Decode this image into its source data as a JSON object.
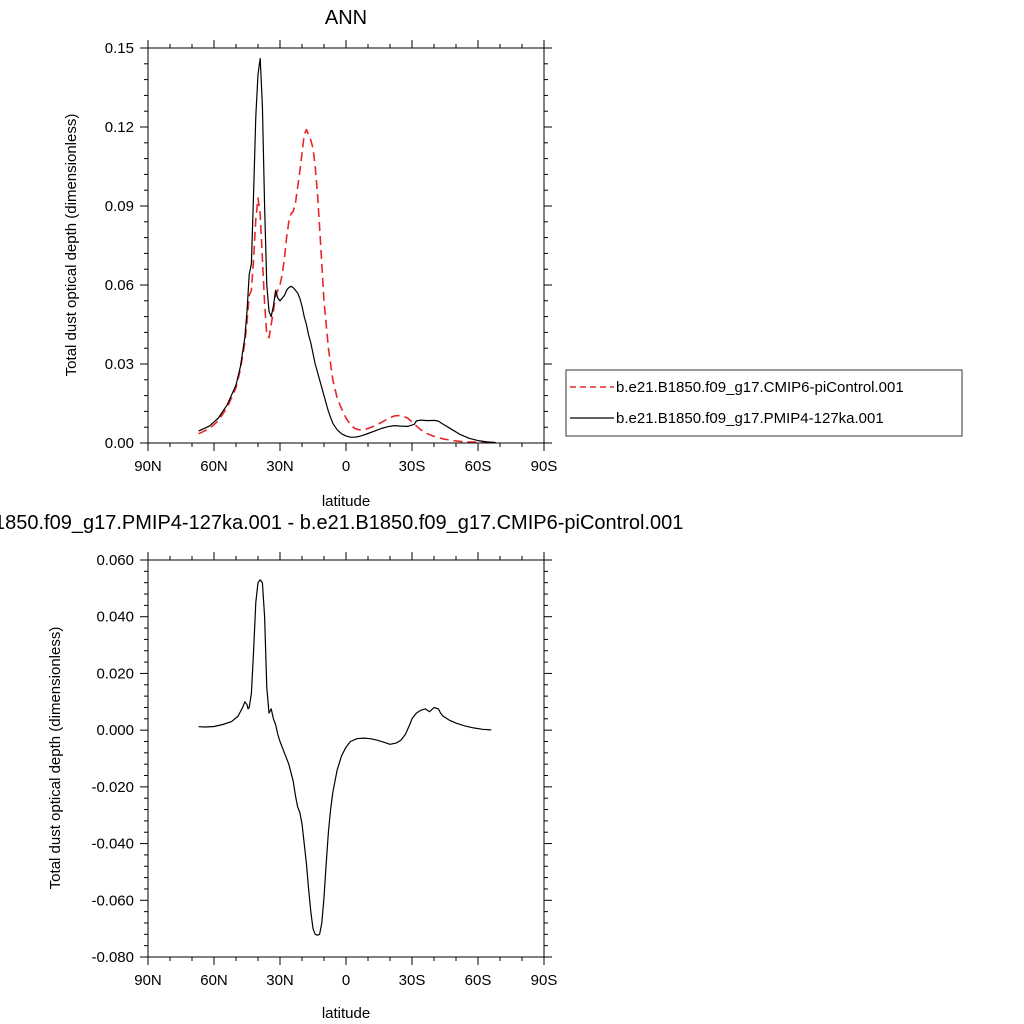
{
  "chart_data": [
    {
      "type": "line",
      "title": "ANN",
      "xlabel": "latitude",
      "ylabel": "Total dust optical depth (dimensionless)",
      "xlim": [
        90,
        -90
      ],
      "ylim": [
        0,
        0.15
      ],
      "x_ticks": [
        {
          "value": 90,
          "label": "90N"
        },
        {
          "value": 60,
          "label": "60N"
        },
        {
          "value": 30,
          "label": "30N"
        },
        {
          "value": 0,
          "label": "0"
        },
        {
          "value": -30,
          "label": "30S"
        },
        {
          "value": -60,
          "label": "60S"
        },
        {
          "value": -90,
          "label": "90S"
        }
      ],
      "y_ticks": [
        {
          "value": 0,
          "label": "0.00"
        },
        {
          "value": 0.03,
          "label": "0.03"
        },
        {
          "value": 0.06,
          "label": "0.06"
        },
        {
          "value": 0.09,
          "label": "0.09"
        },
        {
          "value": 0.12,
          "label": "0.12"
        },
        {
          "value": 0.15,
          "label": "0.15"
        }
      ],
      "grid": false,
      "legend_position": "right",
      "series": [
        {
          "name": "b.e21.B1850.f09_g17.CMIP6-piControl.001",
          "color": "#e8262a",
          "style": "dashed",
          "x": [
            67,
            62,
            58,
            54,
            50,
            48,
            46,
            45,
            44,
            43,
            42,
            41,
            40,
            39,
            38,
            37,
            36,
            35,
            34,
            33,
            32,
            31,
            30,
            29,
            28,
            27,
            26,
            25,
            24,
            23,
            22,
            21,
            20,
            19,
            18,
            17,
            16,
            15,
            14,
            13,
            12,
            11,
            10,
            8,
            6,
            4,
            2,
            0,
            -2,
            -4,
            -6,
            -8,
            -10,
            -13,
            -16,
            -19,
            -22,
            -25,
            -28,
            -31,
            -34,
            -37,
            -40,
            -44,
            -48,
            -52,
            -56,
            -60,
            -64,
            -68
          ],
          "y": [
            0.0035,
            0.0055,
            0.0085,
            0.0135,
            0.021,
            0.028,
            0.038,
            0.046,
            0.056,
            0.058,
            0.07,
            0.085,
            0.093,
            0.087,
            0.07,
            0.053,
            0.041,
            0.04,
            0.045,
            0.05,
            0.056,
            0.058,
            0.06,
            0.064,
            0.07,
            0.078,
            0.084,
            0.087,
            0.088,
            0.091,
            0.097,
            0.103,
            0.11,
            0.117,
            0.119,
            0.117,
            0.115,
            0.112,
            0.105,
            0.095,
            0.082,
            0.068,
            0.054,
            0.036,
            0.024,
            0.017,
            0.013,
            0.0095,
            0.007,
            0.0055,
            0.005,
            0.005,
            0.0055,
            0.0065,
            0.0078,
            0.0092,
            0.0103,
            0.0105,
            0.0095,
            0.0072,
            0.005,
            0.0035,
            0.0025,
            0.0016,
            0.001,
            0.0006,
            0.0004,
            0.0003,
            0.0002,
            0.0001
          ]
        },
        {
          "name": "b.e21.B1850.f09_g17.PMIP4-127ka.001",
          "color": "#000000",
          "style": "solid",
          "x": [
            67,
            62,
            58,
            54,
            50,
            48,
            46,
            45,
            44,
            43,
            42,
            41,
            40,
            39,
            38,
            37,
            36,
            35,
            34,
            33,
            32,
            31,
            30,
            29,
            28,
            27,
            26,
            25,
            24,
            23,
            22,
            21,
            20,
            19,
            18,
            17,
            16,
            15,
            14,
            13,
            12,
            11,
            10,
            8,
            6,
            4,
            2,
            0,
            -2,
            -4,
            -6,
            -8,
            -10,
            -13,
            -16,
            -19,
            -22,
            -25,
            -28,
            -31,
            -32,
            -34,
            -37,
            -40,
            -42,
            -44,
            -48,
            -52,
            -56,
            -60,
            -64,
            -68
          ],
          "y": [
            0.0045,
            0.0065,
            0.0095,
            0.0145,
            0.022,
            0.029,
            0.04,
            0.05,
            0.064,
            0.068,
            0.095,
            0.124,
            0.14,
            0.146,
            0.128,
            0.09,
            0.06,
            0.05,
            0.048,
            0.052,
            0.058,
            0.055,
            0.054,
            0.055,
            0.056,
            0.058,
            0.059,
            0.0595,
            0.059,
            0.058,
            0.057,
            0.055,
            0.052,
            0.048,
            0.045,
            0.041,
            0.038,
            0.034,
            0.03,
            0.027,
            0.024,
            0.021,
            0.018,
            0.012,
            0.0075,
            0.005,
            0.0035,
            0.0027,
            0.0022,
            0.0022,
            0.0025,
            0.003,
            0.0036,
            0.0045,
            0.0055,
            0.0062,
            0.0066,
            0.0064,
            0.0063,
            0.0071,
            0.0084,
            0.0087,
            0.0085,
            0.0086,
            0.0083,
            0.0072,
            0.0052,
            0.0032,
            0.0018,
            0.0009,
            0.0004,
            0.0002
          ]
        }
      ]
    },
    {
      "type": "line",
      "title": "1850.f09_g17.PMIP4-127ka.001 - b.e21.B1850.f09_g17.CMIP6-piControl.001",
      "xlabel": "latitude",
      "ylabel": "Total dust optical depth (dimensionless)",
      "xlim": [
        90,
        -90
      ],
      "ylim": [
        -0.08,
        0.06
      ],
      "x_ticks": [
        {
          "value": 90,
          "label": "90N"
        },
        {
          "value": 60,
          "label": "60N"
        },
        {
          "value": 30,
          "label": "30N"
        },
        {
          "value": 0,
          "label": "0"
        },
        {
          "value": -30,
          "label": "30S"
        },
        {
          "value": -60,
          "label": "60S"
        },
        {
          "value": -90,
          "label": "90S"
        }
      ],
      "y_ticks": [
        {
          "value": -0.08,
          "label": "-0.080"
        },
        {
          "value": -0.06,
          "label": "-0.060"
        },
        {
          "value": -0.04,
          "label": "-0.040"
        },
        {
          "value": -0.02,
          "label": "-0.020"
        },
        {
          "value": 0,
          "label": "0.000"
        },
        {
          "value": 0.02,
          "label": "0.020"
        },
        {
          "value": 0.04,
          "label": "0.040"
        },
        {
          "value": 0.06,
          "label": "0.060"
        }
      ],
      "grid": false,
      "series": [
        {
          "color": "#000000",
          "style": "solid",
          "x": [
            67,
            64,
            60,
            56,
            52,
            49,
            47,
            46,
            45,
            44.5,
            44,
            43,
            42,
            41,
            40,
            39,
            38,
            37,
            36,
            35,
            34,
            33,
            32,
            31,
            30,
            28,
            26,
            24,
            23,
            22,
            21,
            20,
            19,
            18,
            17,
            16,
            15,
            14,
            13,
            12,
            11,
            10,
            9,
            8,
            7,
            6,
            4,
            2,
            0,
            -2,
            -5,
            -8,
            -11,
            -14,
            -17,
            -20,
            -23,
            -25,
            -27,
            -29,
            -30,
            -32,
            -34,
            -36,
            -38,
            -40,
            -42,
            -43,
            -44,
            -45,
            -47,
            -50,
            -54,
            -58,
            -62,
            -66
          ],
          "y": [
            0.0012,
            0.0011,
            0.0013,
            0.002,
            0.003,
            0.005,
            0.008,
            0.01,
            0.009,
            0.0075,
            0.008,
            0.013,
            0.028,
            0.045,
            0.052,
            0.053,
            0.052,
            0.04,
            0.015,
            0.006,
            0.0075,
            0.004,
            0.002,
            -0.0015,
            -0.004,
            -0.008,
            -0.012,
            -0.018,
            -0.023,
            -0.027,
            -0.029,
            -0.033,
            -0.04,
            -0.047,
            -0.056,
            -0.064,
            -0.07,
            -0.072,
            -0.0723,
            -0.072,
            -0.068,
            -0.059,
            -0.047,
            -0.036,
            -0.028,
            -0.022,
            -0.014,
            -0.009,
            -0.006,
            -0.004,
            -0.003,
            -0.0028,
            -0.003,
            -0.0035,
            -0.0042,
            -0.005,
            -0.0045,
            -0.0035,
            -0.0015,
            0.002,
            0.004,
            0.006,
            0.007,
            0.0075,
            0.0065,
            0.008,
            0.0075,
            0.006,
            0.005,
            0.0045,
            0.0035,
            0.0025,
            0.0015,
            0.0008,
            0.0003,
            0.0001
          ]
        }
      ]
    }
  ]
}
